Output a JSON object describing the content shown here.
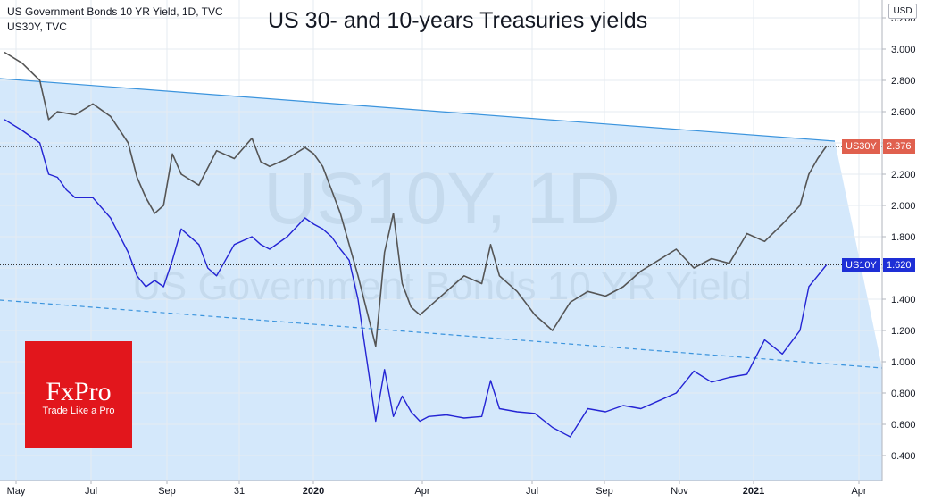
{
  "header": {
    "symbol_line": "US Government Bonds 10 YR Yield, 1D, TVC",
    "compare_line": "US30Y, TVC",
    "currency": "USD"
  },
  "logo": {
    "name": "FxPro",
    "tagline": "Trade Like a Pro"
  },
  "watermark": {
    "line1": "US10Y, 1D",
    "line2": "US Government Bonds 10 YR Yield"
  },
  "chart_data": {
    "type": "line",
    "title": "US 30- and 10-years Treasuries yields",
    "x_tick_labels": [
      "May",
      "Jul",
      "Sep",
      "31",
      "2020",
      "Apr",
      "Jul",
      "Sep",
      "Nov",
      "2021",
      "Apr"
    ],
    "y_tick_labels": [
      "0.400",
      "0.600",
      "0.800",
      "1.000",
      "1.200",
      "1.400",
      "1.600",
      "1.800",
      "2.000",
      "2.200",
      "2.400",
      "2.600",
      "2.800",
      "3.000",
      "3.200"
    ],
    "ylim": [
      0.2,
      3.3
    ],
    "xlim": [
      0,
      98
    ],
    "grid": true,
    "series": [
      {
        "name": "US30Y",
        "last_value": "2.376",
        "color": "#555555",
        "x": [
          0,
          2,
          4,
          5,
          6,
          8,
          10,
          12,
          14,
          15,
          16,
          17,
          18,
          19,
          20,
          22,
          24,
          26,
          28,
          29,
          30,
          32,
          34,
          35,
          36,
          37,
          38,
          39,
          40,
          42,
          43,
          44,
          45,
          46,
          47,
          48,
          50,
          52,
          54,
          55,
          56,
          58,
          60,
          62,
          64,
          66,
          68,
          70,
          72,
          74,
          76,
          78,
          80,
          82,
          84,
          86,
          88,
          90,
          91,
          92,
          93
        ],
        "values": [
          2.98,
          2.91,
          2.8,
          2.55,
          2.6,
          2.58,
          2.65,
          2.57,
          2.4,
          2.18,
          2.05,
          1.95,
          2.0,
          2.33,
          2.2,
          2.13,
          2.35,
          2.3,
          2.43,
          2.28,
          2.25,
          2.3,
          2.37,
          2.33,
          2.25,
          2.1,
          1.95,
          1.75,
          1.55,
          1.1,
          1.7,
          1.95,
          1.5,
          1.35,
          1.3,
          1.35,
          1.45,
          1.55,
          1.5,
          1.75,
          1.55,
          1.45,
          1.3,
          1.2,
          1.38,
          1.45,
          1.42,
          1.48,
          1.58,
          1.65,
          1.72,
          1.6,
          1.66,
          1.63,
          1.82,
          1.77,
          1.88,
          2.0,
          2.2,
          2.3,
          2.38
        ]
      },
      {
        "name": "US10Y",
        "last_value": "1.620",
        "color": "#2424d4",
        "x": [
          0,
          2,
          4,
          5,
          6,
          7,
          8,
          10,
          12,
          14,
          15,
          16,
          17,
          18,
          19,
          20,
          22,
          23,
          24,
          26,
          28,
          29,
          30,
          32,
          34,
          35,
          36,
          37,
          38,
          39,
          40,
          42,
          43,
          44,
          45,
          46,
          47,
          48,
          50,
          52,
          54,
          55,
          56,
          58,
          60,
          62,
          64,
          66,
          68,
          70,
          72,
          74,
          76,
          78,
          80,
          82,
          84,
          86,
          88,
          90,
          91,
          92,
          93
        ],
        "values": [
          2.55,
          2.48,
          2.4,
          2.2,
          2.18,
          2.1,
          2.05,
          2.05,
          1.92,
          1.7,
          1.55,
          1.48,
          1.52,
          1.48,
          1.65,
          1.85,
          1.75,
          1.6,
          1.55,
          1.75,
          1.8,
          1.75,
          1.72,
          1.8,
          1.92,
          1.88,
          1.85,
          1.8,
          1.72,
          1.65,
          1.4,
          0.62,
          0.95,
          0.65,
          0.78,
          0.68,
          0.62,
          0.65,
          0.66,
          0.64,
          0.65,
          0.88,
          0.7,
          0.68,
          0.67,
          0.58,
          0.52,
          0.7,
          0.68,
          0.72,
          0.7,
          0.75,
          0.8,
          0.94,
          0.87,
          0.9,
          0.92,
          1.14,
          1.05,
          1.2,
          1.48,
          1.55,
          1.62
        ]
      }
    ]
  }
}
